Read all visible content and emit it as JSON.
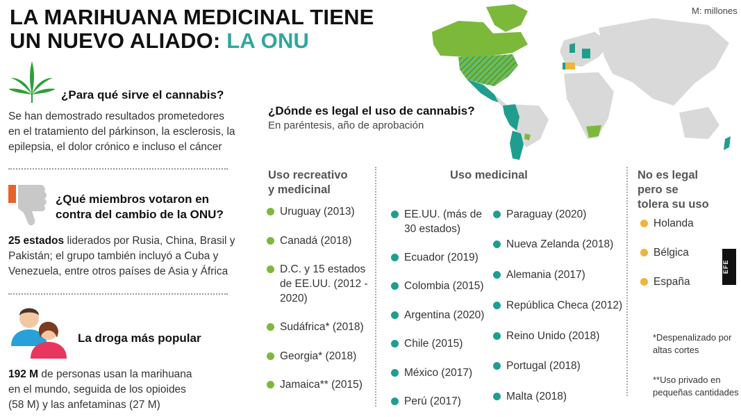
{
  "title": {
    "line1": "LA MARIHUANA MEDICINAL TIENE",
    "line2_prefix": "UN NUEVO ALIADO: ",
    "line2_highlight": "LA ONU"
  },
  "unit_note": "M: millones",
  "sections": {
    "uses": {
      "heading": "¿Para qué sirve el cannabis?",
      "body": [
        "Se han demostrado resultados prometedores",
        "en el tratamiento del párkinson, la esclerosis, la",
        "epilepsia, el dolor crónico e incluso el cáncer"
      ]
    },
    "votes": {
      "heading": [
        "¿Qué miembros votaron en",
        "contra del cambio de la ONU?"
      ],
      "bold": "25 estados",
      "body_first": " liderados por Rusia, China, Brasil y",
      "body": [
        "Pakistán; el grupo también incluyó a Cuba y",
        "Venezuela, entre otros países de Asia y África"
      ]
    },
    "popular": {
      "heading": "La droga más popular",
      "bold": "192 M",
      "body_first": " de personas usan la marihuana",
      "body": [
        "en el mundo, seguida de los opioides",
        "(58 M) y las anfetaminas (27 M)"
      ]
    }
  },
  "legal": {
    "question": "¿Dónde es legal el uso de cannabis?",
    "subtitle": "En paréntesis, año de aprobación",
    "recreational": {
      "heading": [
        "Uso recreativo",
        "y medicinal"
      ],
      "items": [
        [
          "Uruguay (2013)"
        ],
        [
          "Canadá (2018)"
        ],
        [
          "D.C. y 15 estados",
          "de EE.UU. (2012 -",
          "2020)"
        ],
        [
          "Sudáfrica* (2018)"
        ],
        [
          "Georgia* (2018)"
        ],
        [
          "Jamaica** (2015)"
        ]
      ]
    },
    "medicinal": {
      "heading": "Uso medicinal",
      "col1": [
        [
          "EE.UU. (más de",
          "30 estados)"
        ],
        [
          "Ecuador (2019)"
        ],
        [
          "Colombia (2015)"
        ],
        [
          "Argentina (2020)"
        ],
        [
          "Chile (2015)"
        ],
        [
          "México (2017)"
        ],
        [
          "Perú (2017)"
        ]
      ],
      "col2": [
        [
          "Paraguay (2020)"
        ],
        [
          "Nueva Zelanda (2018)"
        ],
        [
          "Alemania (2017)"
        ],
        [
          "República Checa (2012)"
        ],
        [
          "Reino Unido (2018)"
        ],
        [
          "Portugal (2018)"
        ],
        [
          "Malta (2018)"
        ]
      ]
    },
    "tolerated": {
      "heading": [
        "No es legal",
        "pero se",
        "tolera su uso"
      ],
      "items": [
        [
          "Holanda"
        ],
        [
          "Bélgica"
        ],
        [
          "España"
        ]
      ]
    },
    "notes": [
      [
        "*Despenalizado por",
        "altas cortes"
      ],
      [
        "**Uso privado en",
        "pequeñas cantidades"
      ]
    ]
  },
  "credit": "EFE",
  "colors": {
    "recreational": "#7cb93b",
    "medicinal": "#1f9e8f",
    "tolerated": "#f0b33c",
    "accent": "#2fa79c",
    "land": "#d9d9d9"
  },
  "icons": [
    "cannabis-leaf-icon",
    "thumbs-down-icon",
    "people-icon",
    "world-map"
  ]
}
